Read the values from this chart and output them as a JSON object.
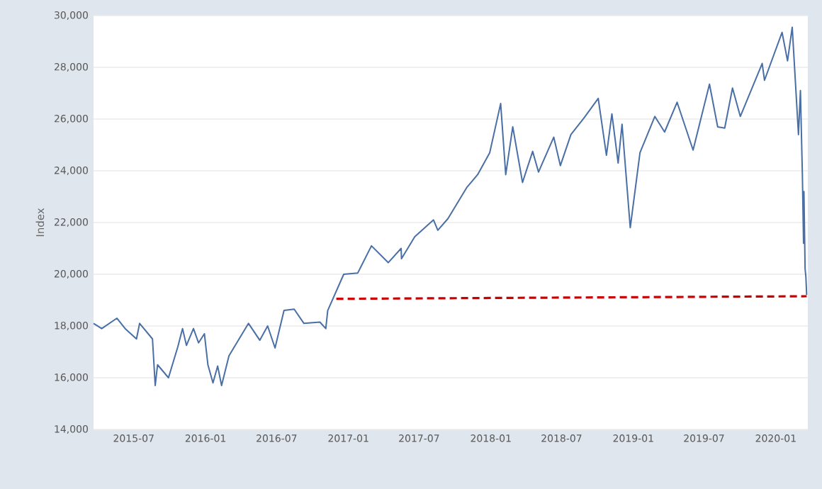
{
  "chart_data": {
    "type": "line",
    "ylabel": "Index",
    "series": [
      {
        "color": "#4a6fa5",
        "line_style": "solid",
        "x": [
          "2015-03-20",
          "2015-04-10",
          "2015-05-19",
          "2015-06-09",
          "2015-07-08",
          "2015-07-16",
          "2015-08-18",
          "2015-08-25",
          "2015-08-31",
          "2015-09-28",
          "2015-10-22",
          "2015-11-03",
          "2015-11-13",
          "2015-12-01",
          "2015-12-14",
          "2015-12-29",
          "2016-01-07",
          "2016-01-20",
          "2016-02-01",
          "2016-02-11",
          "2016-03-01",
          "2016-04-20",
          "2016-05-19",
          "2016-06-08",
          "2016-06-27",
          "2016-07-20",
          "2016-08-15",
          "2016-09-09",
          "2016-10-20",
          "2016-11-04",
          "2016-11-09",
          "2016-12-20",
          "2017-01-25",
          "2017-03-01",
          "2017-04-13",
          "2017-05-16",
          "2017-05-17",
          "2017-06-20",
          "2017-08-07",
          "2017-08-18",
          "2017-09-13",
          "2017-10-31",
          "2017-11-28",
          "2017-12-29",
          "2018-01-26",
          "2018-02-08",
          "2018-02-26",
          "2018-03-23",
          "2018-04-18",
          "2018-05-03",
          "2018-06-11",
          "2018-06-28",
          "2018-07-25",
          "2018-08-28",
          "2018-10-03",
          "2018-10-24",
          "2018-11-07",
          "2018-11-23",
          "2018-12-03",
          "2018-12-24",
          "2019-01-18",
          "2019-02-25",
          "2019-03-22",
          "2019-04-23",
          "2019-06-03",
          "2019-07-15",
          "2019-08-05",
          "2019-08-23",
          "2019-09-12",
          "2019-10-02",
          "2019-11-27",
          "2019-12-03",
          "2020-01-17",
          "2020-01-31",
          "2020-02-12",
          "2020-02-28",
          "2020-03-04",
          "2020-03-09",
          "2020-03-12",
          "2020-03-13",
          "2020-03-16",
          "2020-03-18",
          "2020-03-20"
        ],
        "values": [
          18100,
          17900,
          18300,
          17900,
          17500,
          18100,
          17500,
          15700,
          16500,
          16000,
          17200,
          17900,
          17250,
          17900,
          17350,
          17700,
          16500,
          15800,
          16450,
          15700,
          16850,
          18100,
          17450,
          18000,
          17150,
          18600,
          18650,
          18100,
          18150,
          17900,
          18600,
          20000,
          20050,
          21100,
          20450,
          21000,
          20600,
          21450,
          22100,
          21700,
          22150,
          23350,
          23850,
          24700,
          26600,
          23850,
          25700,
          23550,
          24750,
          23950,
          25300,
          24200,
          25400,
          26050,
          26800,
          24600,
          26200,
          24300,
          25800,
          21800,
          24700,
          26100,
          25500,
          26650,
          24800,
          27350,
          25700,
          25650,
          27200,
          26100,
          28150,
          27500,
          29350,
          28250,
          29550,
          25400,
          27100,
          23850,
          21200,
          23200,
          20200,
          19900,
          19200
        ]
      },
      {
        "color": "#cc0000",
        "line_style": "dashed",
        "x": [
          "2016-12-01",
          "2020-03-20"
        ],
        "values": [
          19050,
          19150
        ]
      }
    ],
    "xlim": [
      "2015-03-20",
      "2020-03-23"
    ],
    "xticks": [
      "2015-07",
      "2016-01",
      "2016-07",
      "2017-01",
      "2017-07",
      "2018-01",
      "2018-07",
      "2019-01",
      "2019-07",
      "2020-01"
    ],
    "ylim": [
      14000,
      30000
    ],
    "yticks": [
      {
        "value": 14000,
        "label": "14,000"
      },
      {
        "value": 16000,
        "label": "16,000"
      },
      {
        "value": 18000,
        "label": "18,000"
      },
      {
        "value": 20000,
        "label": "20,000"
      },
      {
        "value": 22000,
        "label": "22,000"
      },
      {
        "value": 24000,
        "label": "24,000"
      },
      {
        "value": 26000,
        "label": "26,000"
      },
      {
        "value": 28000,
        "label": "28,000"
      },
      {
        "value": 30000,
        "label": "30,000"
      }
    ],
    "grid": "y"
  }
}
